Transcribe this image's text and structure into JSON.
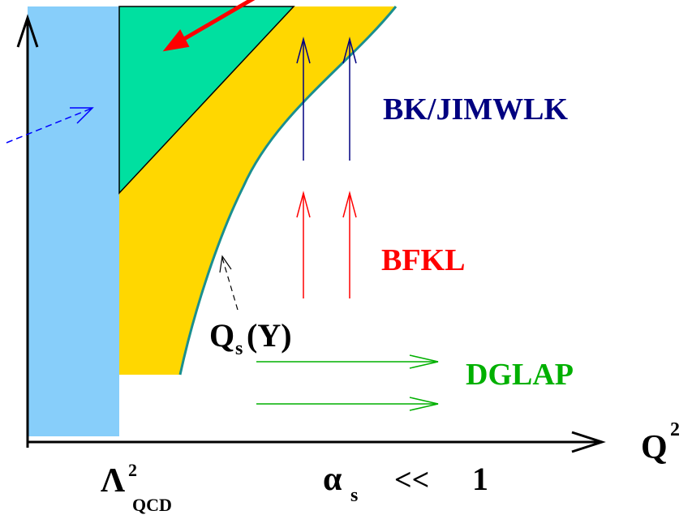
{
  "colors": {
    "blue_region": "#87cefa",
    "green_region": "#00e0a0",
    "yellow_region": "#ffd700",
    "saturation_line": "#1a8f8f",
    "bk_jimwlk": "#000080",
    "bfkl": "#ff0000",
    "dglap": "#00b000",
    "black": "#000000"
  },
  "labels": {
    "bk_jimwlk": "BK/JIMWLK",
    "bfkl": "BFKL",
    "dglap": "DGLAP",
    "qs_main": "Q",
    "qs_sub": "s",
    "qs_arg": "(Y)",
    "x_axis_main": "Q",
    "x_axis_sup": "2",
    "lambda_main": "Λ",
    "lambda_sup": "2",
    "lambda_sub": "QCD",
    "alpha_main": "α",
    "alpha_sub": "s",
    "alpha_rel": "<<",
    "alpha_val": "1"
  }
}
